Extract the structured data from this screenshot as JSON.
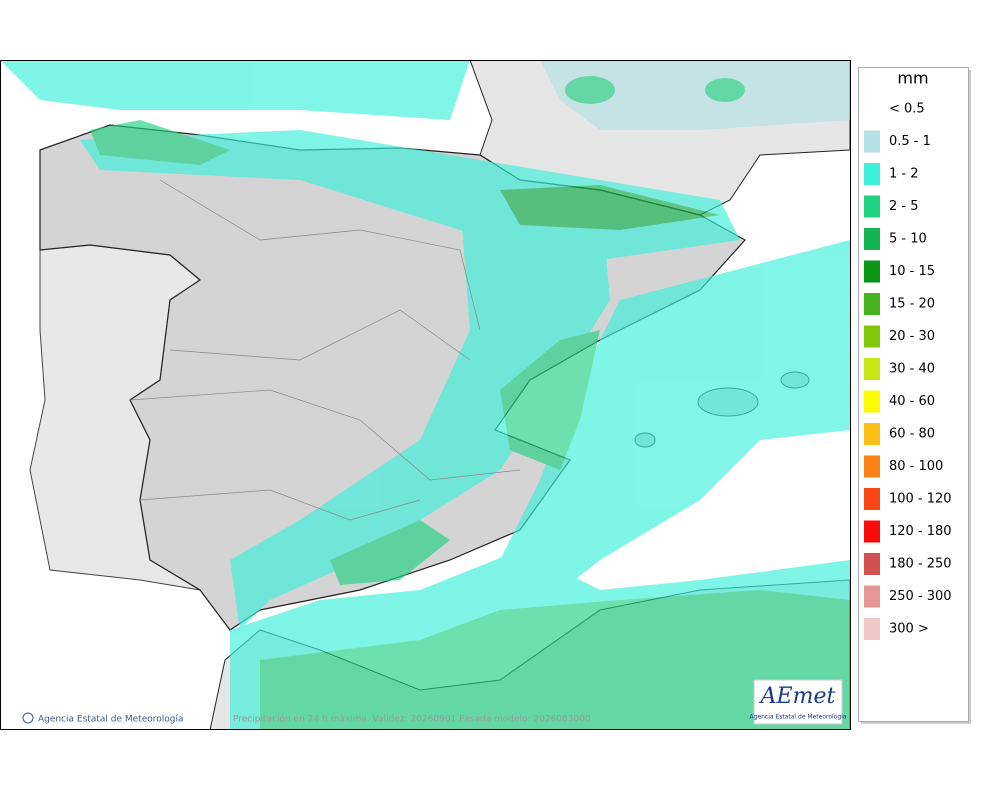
{
  "map": {
    "caption": "Precipitación en 24 h máxima. Validez: 20260901 Pasada modelo: 2026083000",
    "credit": "Agencia Estatal de Meteorología"
  },
  "logo": {
    "name": "AEmet",
    "subtitle": "Agencia Estatal de Meteorología"
  },
  "legend": {
    "title": "mm",
    "items": [
      {
        "label": "< 0.5"
      },
      {
        "label": "0.5 - 1",
        "color": "#b4e0e4"
      },
      {
        "label": "1 - 2",
        "color": "#3cf0dc"
      },
      {
        "label": "2 - 5",
        "color": "#1ed282"
      },
      {
        "label": "5 - 10",
        "color": "#14b450"
      },
      {
        "label": "10 - 15",
        "color": "#0a9614"
      },
      {
        "label": "15 - 20",
        "color": "#46b41e"
      },
      {
        "label": "20 - 30",
        "color": "#82c80a"
      },
      {
        "label": "30 - 40",
        "color": "#c8e614"
      },
      {
        "label": "40 - 60",
        "color": "#fafa00"
      },
      {
        "label": "60 - 80",
        "color": "#fabe14"
      },
      {
        "label": "80 - 100",
        "color": "#fa8214"
      },
      {
        "label": "100 - 120",
        "color": "#fa4614"
      },
      {
        "label": "120 - 180",
        "color": "#fa0a0a"
      },
      {
        "label": "180 - 250",
        "color": "#d25050"
      },
      {
        "label": "250 - 300",
        "color": "#e69696"
      },
      {
        "label": "300 >",
        "color": "#f0c8c8"
      }
    ]
  }
}
